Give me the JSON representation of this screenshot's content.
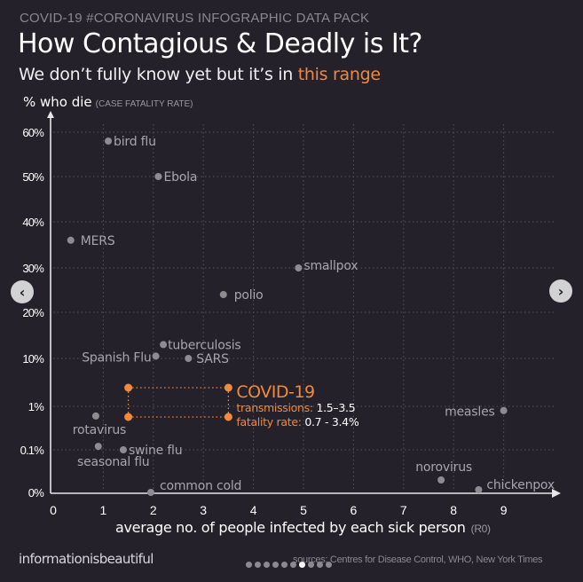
{
  "header": {
    "kicker": "COVID-19 #CORONAVIRUS INFOGRAPHIC DATA PACK",
    "title": "How Contagious  & Deadly is It?",
    "subtitle_prefix": "We don’t fully know yet but it’s in ",
    "subtitle_highlight": "this range",
    "highlight_color": "#e98a4a"
  },
  "footer": {
    "brand": "informationisbeautiful",
    "sources": "sources: Centres for Disease Control, WHO, New York Times",
    "carousel": {
      "total": 10,
      "active_index": 6
    }
  },
  "nav": {
    "prev_icon": "‹",
    "next_icon": "›"
  },
  "chart_data": {
    "type": "scatter",
    "title": "How Contagious & Deadly is It?",
    "ylabel": "% who die",
    "ylabel_sub": "(CASE FATALITY RATE)",
    "xlabel": "average no. of people infected by each sick person",
    "xlabel_sub": "(R0)",
    "x_ticks": [
      "0",
      "1",
      "2",
      "3",
      "4",
      "5",
      "6",
      "7",
      "8",
      "9"
    ],
    "xlim": [
      0,
      9.7
    ],
    "y_scale": "piecewise (0%, 0.1%, 1%, 10% log-like; 10%-60% linear)",
    "y_ticks": [
      "0%",
      "0.1%",
      "1%",
      "10%",
      "20%",
      "30%",
      "40%",
      "50%",
      "60%"
    ],
    "grid": true,
    "point_color": "#8e8c92",
    "label_color": "#a8a6ac",
    "highlight_color": "#f08a3c",
    "points": [
      {
        "name": "bird flu",
        "x": 1.1,
        "y": "58%"
      },
      {
        "name": "Ebola",
        "x": 2.1,
        "y": "50%"
      },
      {
        "name": "MERS",
        "x": 0.35,
        "y": "36%"
      },
      {
        "name": "smallpox",
        "x": 4.9,
        "y": "30%"
      },
      {
        "name": "polio",
        "x": 3.4,
        "y": "24%"
      },
      {
        "name": "tuberculosis",
        "x": 2.2,
        "y": "13%"
      },
      {
        "name": "Spanish Flu",
        "x": 2.05,
        "y": "10.5%"
      },
      {
        "name": "SARS",
        "x": 2.7,
        "y": "10%"
      },
      {
        "name": "rotavirus",
        "x": 0.85,
        "y": "0.6%"
      },
      {
        "name": "seasonal flu",
        "x": 0.9,
        "y": "0.12%"
      },
      {
        "name": "swine flu",
        "x": 1.4,
        "y": "0.1%"
      },
      {
        "name": "common cold",
        "x": 1.95,
        "y": "0%"
      },
      {
        "name": "measles",
        "x": 9.0,
        "y": "0.8%"
      },
      {
        "name": "norovirus",
        "x": 7.75,
        "y": "0.03%"
      },
      {
        "name": "chickenpox",
        "x": 8.5,
        "y": "0.01%"
      }
    ],
    "highlight": {
      "name": "COVID-19",
      "transmissions_label": "transmissions:",
      "transmissions_value": "1.5–3.5",
      "fatality_label": "fatality rate:",
      "fatality_value": "0.7 - 3.4%",
      "x_range": [
        1.5,
        3.5
      ],
      "y_range": [
        "0.7%",
        "3.4%"
      ]
    }
  }
}
